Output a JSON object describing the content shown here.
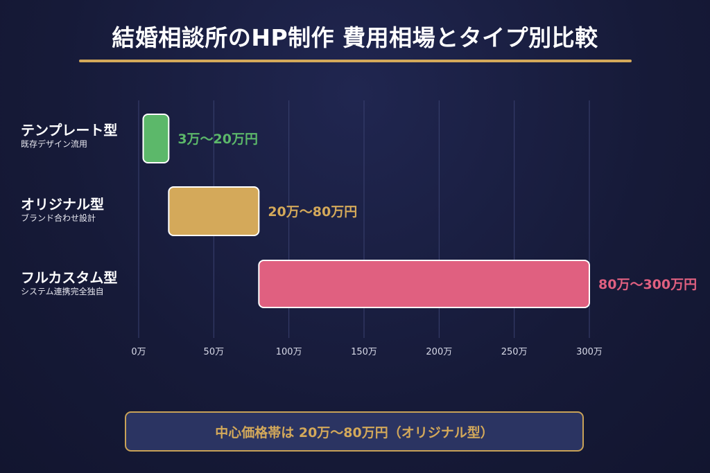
{
  "title": "結婚相談所のHP制作 費用相場とタイプ別比較",
  "colors": {
    "accent": "#d4a95a",
    "template": "#5cb86a",
    "original": "#d4a95a",
    "full": "#e06080",
    "background": "#161a38"
  },
  "categories": [
    {
      "name": "テンプレート型",
      "sub": "既存デザイン流用"
    },
    {
      "name": "オリジナル型",
      "sub": "ブランド合わせ設計"
    },
    {
      "name": "フルカスタム型",
      "sub": "システム連携完全独自"
    }
  ],
  "chart_data": {
    "type": "bar",
    "orientation": "horizontal-range",
    "categories": [
      "テンプレート型",
      "オリジナル型",
      "フルカスタム型"
    ],
    "ranges": [
      [
        3,
        20
      ],
      [
        20,
        80
      ],
      [
        80,
        300
      ]
    ],
    "range_labels": [
      "3万〜20万円",
      "20万〜80万円",
      "80万〜300万円"
    ],
    "colors": [
      "#5cb86a",
      "#d4a95a",
      "#e06080"
    ],
    "xlim": [
      0,
      300
    ],
    "x_ticks": [
      0,
      50,
      100,
      150,
      200,
      250,
      300
    ],
    "x_tick_labels": [
      "0万",
      "50万",
      "100万",
      "150万",
      "200万",
      "250万",
      "300万"
    ],
    "grid": "vertical"
  },
  "callout": "中心価格帯は 20万〜80万円（オリジナル型）"
}
